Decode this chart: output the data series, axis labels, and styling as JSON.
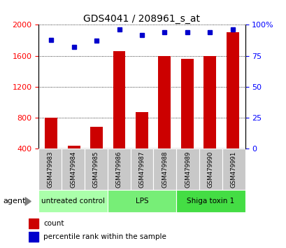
{
  "title": "GDS4041 / 208961_s_at",
  "samples": [
    "GSM479983",
    "GSM479984",
    "GSM479985",
    "GSM479986",
    "GSM479987",
    "GSM479988",
    "GSM479989",
    "GSM479990",
    "GSM479991"
  ],
  "counts": [
    800,
    440,
    680,
    1660,
    870,
    1600,
    1560,
    1600,
    1900
  ],
  "percentiles": [
    88,
    82,
    87,
    96,
    92,
    94,
    94,
    94,
    96
  ],
  "bar_color": "#cc0000",
  "dot_color": "#0000cc",
  "ylim_left": [
    400,
    2000
  ],
  "ylim_right": [
    0,
    100
  ],
  "yticks_left": [
    400,
    800,
    1200,
    1600,
    2000
  ],
  "yticks_right": [
    0,
    25,
    50,
    75,
    100
  ],
  "groups": [
    {
      "label": "untreated control",
      "start": 0,
      "end": 3,
      "color": "#aaffaa"
    },
    {
      "label": "LPS",
      "start": 3,
      "end": 6,
      "color": "#77ee77"
    },
    {
      "label": "Shiga toxin 1",
      "start": 6,
      "end": 9,
      "color": "#44dd44"
    }
  ],
  "agent_label": "agent",
  "legend_count": "count",
  "legend_pct": "percentile rank within the sample",
  "cell_bg": "#c8c8c8",
  "plot_bg": "#ffffff",
  "grid_color": "#000000"
}
